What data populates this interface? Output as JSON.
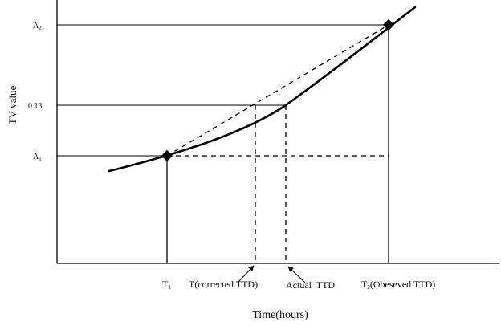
{
  "figure": {
    "y_axis_label": "TV value",
    "x_axis_label": "Time(hours)",
    "y_ticks": {
      "a2": {
        "main": "A",
        "sub": "2"
      },
      "v013": "0.13",
      "a1": {
        "main": "A",
        "sub": "1"
      }
    },
    "x_ticks": {
      "t1": {
        "main": "T",
        "sub": "1"
      },
      "t_corrected": "T(corrected TTD)",
      "actual": "Actual  TTD",
      "t2": {
        "main": "T",
        "sub": "2",
        "rest": "(Obeseved TTD)"
      }
    }
  }
}
